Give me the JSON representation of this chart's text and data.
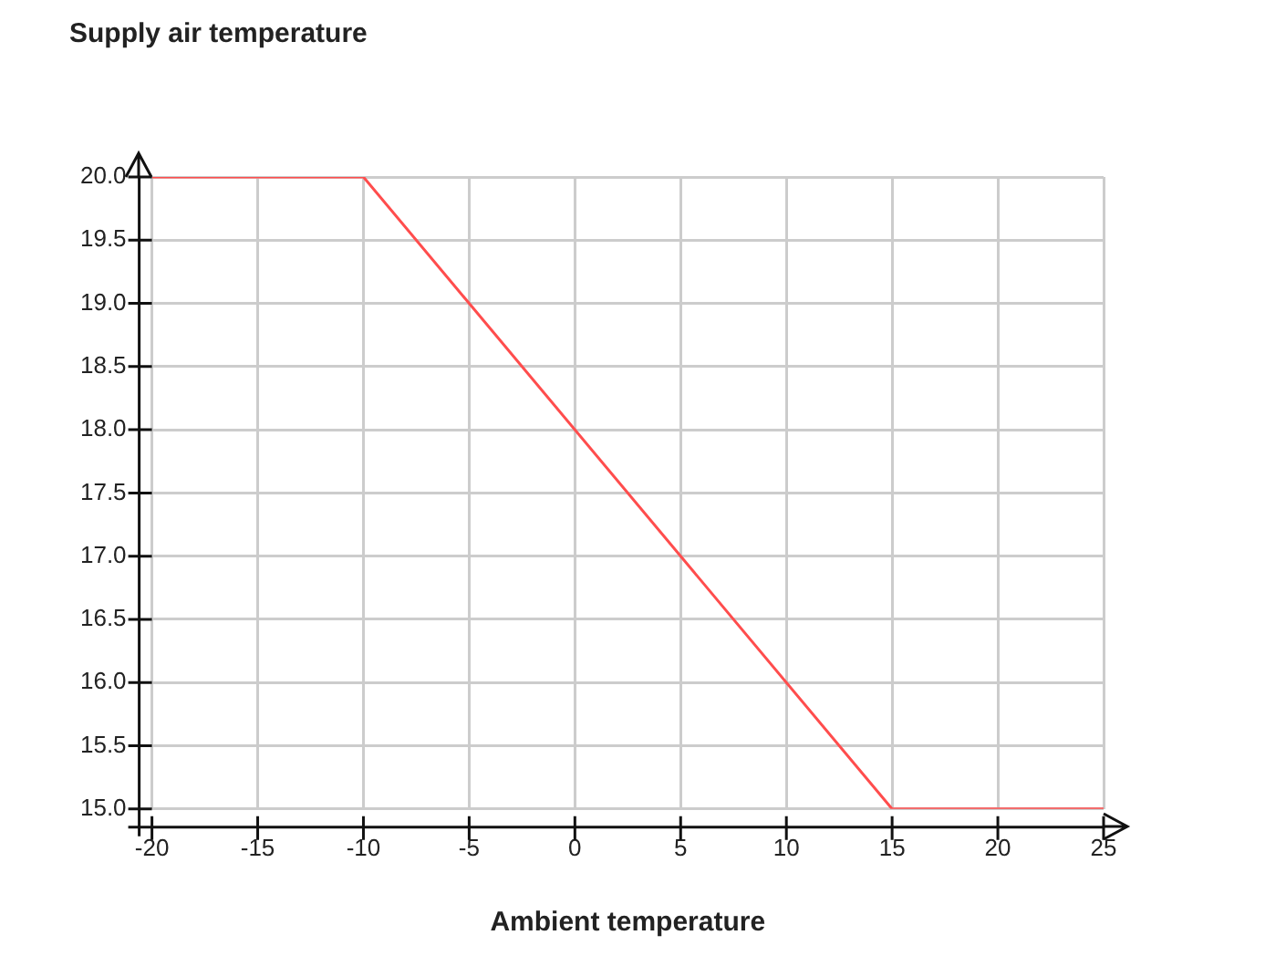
{
  "chart_data": {
    "type": "line",
    "xlabel": "Ambient temperature",
    "ylabel": "Supply air temperature",
    "x": [
      -20,
      -10,
      15,
      25
    ],
    "series": [
      {
        "color": "#ff4d4d",
        "values": [
          20,
          20,
          15,
          15
        ]
      }
    ],
    "xlim": [
      -20,
      25
    ],
    "xticks": [
      -20,
      -15,
      -10,
      -5,
      0,
      5,
      10,
      15,
      20,
      25
    ],
    "ylim": [
      15,
      20
    ],
    "yticks": [
      {
        "value": 15,
        "label": "15.0"
      },
      {
        "value": 15.5,
        "label": "15.5"
      },
      {
        "value": 16,
        "label": "16.0"
      },
      {
        "value": 16.5,
        "label": "16.5"
      },
      {
        "value": 17,
        "label": "17.0"
      },
      {
        "value": 17.5,
        "label": "17.5"
      },
      {
        "value": 18,
        "label": "18.0"
      },
      {
        "value": 18.5,
        "label": "18.5"
      },
      {
        "value": 19,
        "label": "19.0"
      },
      {
        "value": 19.5,
        "label": "19.5"
      },
      {
        "value": 20,
        "label": "20.0"
      }
    ],
    "grid": true,
    "legend": false,
    "marker": "none",
    "line_style": "solid"
  }
}
